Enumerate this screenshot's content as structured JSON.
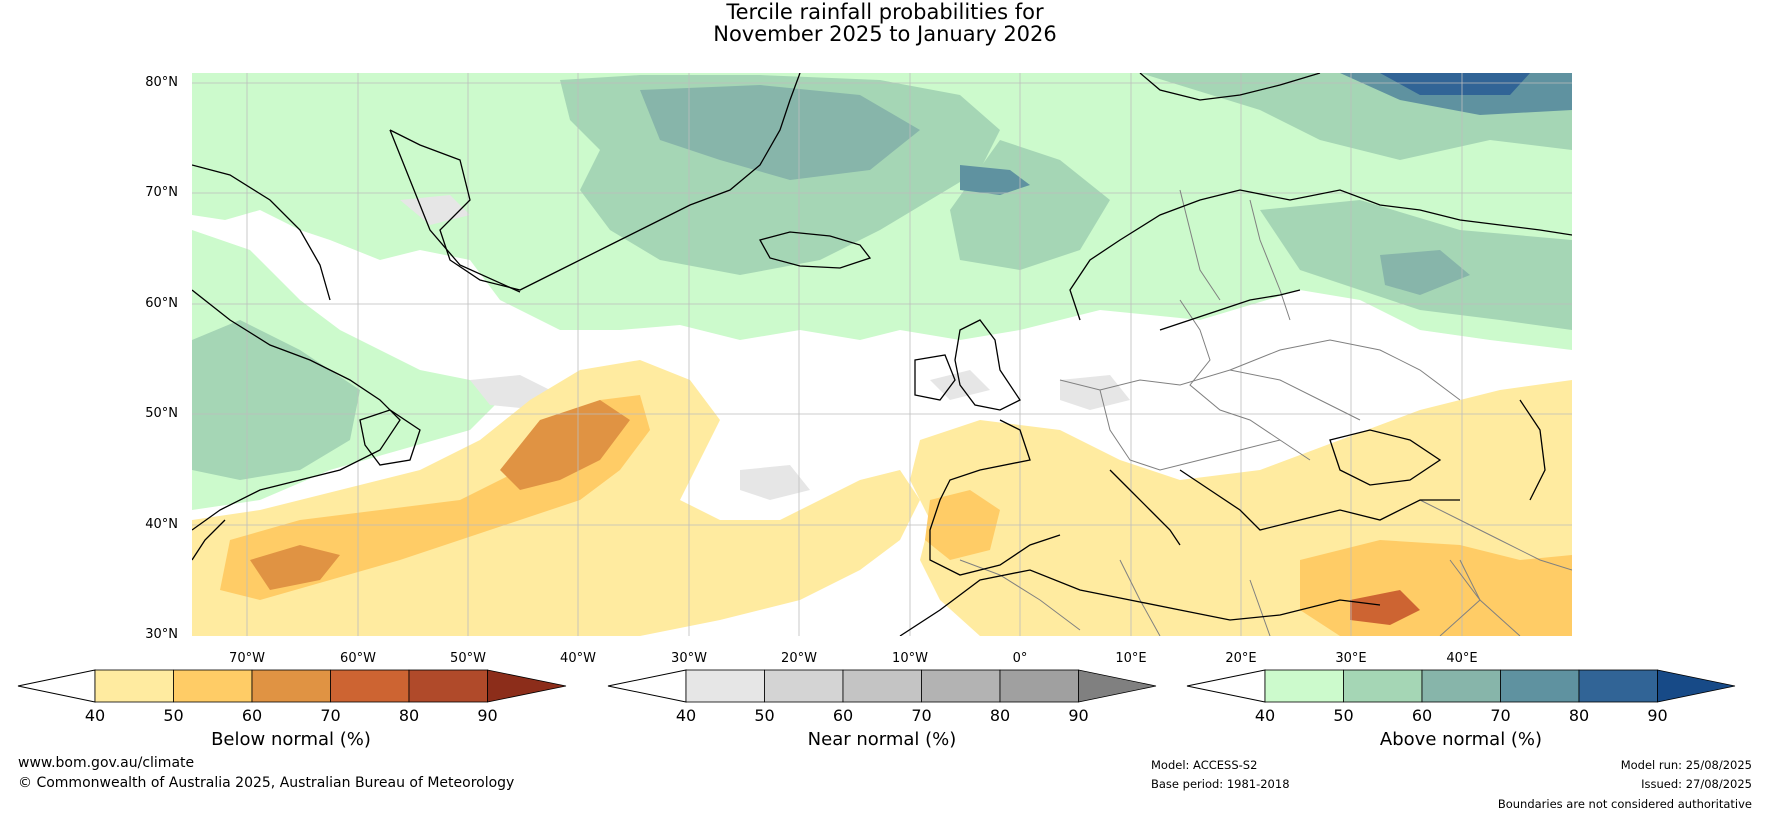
{
  "title": {
    "line1": "Tercile rainfall probabilities for",
    "line2": "November 2025 to January 2026"
  },
  "map": {
    "lat_labels": [
      "80°N",
      "70°N",
      "60°N",
      "50°N",
      "40°N",
      "30°N"
    ],
    "lon_labels": [
      "70°W",
      "60°W",
      "50°W",
      "40°W",
      "30°W",
      "20°W",
      "10°W",
      "0°",
      "10°E",
      "20°E",
      "30°E",
      "40°E"
    ],
    "lat_range": [
      30,
      81
    ],
    "lon_range": [
      -80,
      45
    ],
    "coastline_color": "#000000",
    "border_color": "#808080",
    "grid_color": "#bdbdbd"
  },
  "colorbars": [
    {
      "label": "Below normal (%)",
      "ticks": [
        "40",
        "50",
        "60",
        "70",
        "80",
        "90"
      ],
      "colors": [
        "#ffffff",
        "#ffeba0",
        "#ffcc66",
        "#e09343",
        "#cd6432",
        "#b04a2a",
        "#8c2d1a"
      ]
    },
    {
      "label": "Near normal (%)",
      "ticks": [
        "40",
        "50",
        "60",
        "70",
        "80",
        "90"
      ],
      "colors": [
        "#ffffff",
        "#e6e6e6",
        "#d4d4d4",
        "#c4c4c4",
        "#b3b3b3",
        "#a0a0a0",
        "#808080"
      ]
    },
    {
      "label": "Above normal (%)",
      "ticks": [
        "40",
        "50",
        "60",
        "70",
        "80",
        "90"
      ],
      "colors": [
        "#ffffff",
        "#ccfacc",
        "#a5d6b5",
        "#87b5aa",
        "#5f92a0",
        "#316496",
        "#174a87"
      ]
    }
  ],
  "footer": {
    "website": "www.bom.gov.au/climate",
    "copyright": "© Commonwealth of Australia 2025, Australian Bureau of Meteorology",
    "model": "Model: ACCESS-S2",
    "base_period": "Base period: 1981-2018",
    "model_run": "Model run: 25/08/2025",
    "issued": "Issued: 27/08/2025",
    "disclaimer": "Boundaries are not considered authoritative"
  }
}
